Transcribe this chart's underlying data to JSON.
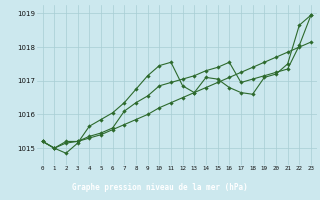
{
  "xlabel": "Graphe pression niveau de la mer (hPa)",
  "x_ticks": [
    0,
    1,
    2,
    3,
    4,
    5,
    6,
    7,
    8,
    9,
    10,
    11,
    12,
    13,
    14,
    15,
    16,
    17,
    18,
    19,
    20,
    21,
    22,
    23
  ],
  "ylim": [
    1014.5,
    1019.25
  ],
  "yticks": [
    1015,
    1016,
    1017,
    1018,
    1019
  ],
  "line_color": "#2d6a2d",
  "bg_color": "#cce8ee",
  "grid_color": "#a8cdd4",
  "footer_bg": "#2d6a2d",
  "footer_text_color": "#ffffff",
  "line1": [
    1015.2,
    1015.0,
    1014.85,
    1015.15,
    1015.65,
    1015.85,
    1016.05,
    1016.35,
    1016.75,
    1017.15,
    1017.45,
    1017.55,
    1016.85,
    1016.65,
    1017.1,
    1017.05,
    1016.8,
    1016.65,
    1016.6,
    1017.1,
    1017.2,
    1017.5,
    1018.65,
    1018.95
  ],
  "line2": [
    1015.2,
    1015.0,
    1015.2,
    1015.2,
    1015.35,
    1015.45,
    1015.6,
    1016.1,
    1016.35,
    1016.55,
    1016.85,
    1016.95,
    1017.05,
    1017.15,
    1017.3,
    1017.4,
    1017.55,
    1016.95,
    1017.05,
    1017.15,
    1017.25,
    1017.35,
    1018.05,
    1018.95
  ],
  "line3": [
    1015.2,
    1015.0,
    1015.15,
    1015.2,
    1015.3,
    1015.4,
    1015.55,
    1015.7,
    1015.85,
    1016.0,
    1016.2,
    1016.35,
    1016.5,
    1016.65,
    1016.8,
    1016.95,
    1017.1,
    1017.25,
    1017.4,
    1017.55,
    1017.7,
    1017.85,
    1018.0,
    1018.15
  ]
}
